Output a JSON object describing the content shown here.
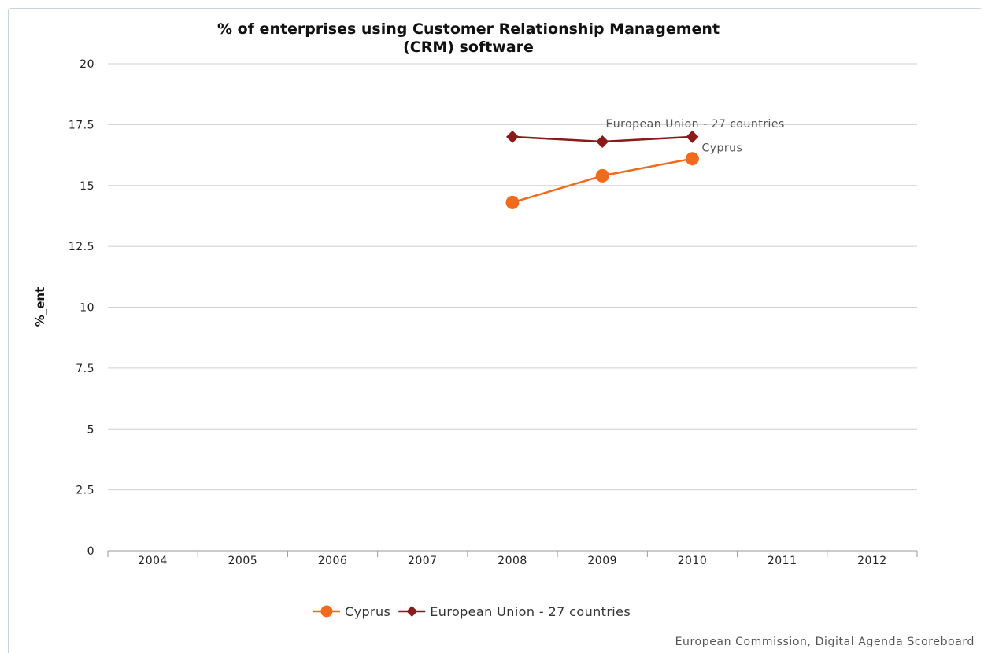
{
  "chart_data": {
    "type": "line",
    "title_lines": [
      "% of enterprises using Customer Relationship Management",
      "(CRM) software"
    ],
    "xlabel": "",
    "ylabel": "%_ent",
    "categories": [
      "2004",
      "2005",
      "2006",
      "2007",
      "2008",
      "2009",
      "2010",
      "2011",
      "2012"
    ],
    "ylim": [
      0,
      20
    ],
    "yticks": [
      "0",
      "2.5",
      "5",
      "7.5",
      "10",
      "12.5",
      "15",
      "17.5",
      "20"
    ],
    "grid": true,
    "legend_position": "bottom",
    "series": [
      {
        "name": "Cyprus",
        "color": "#f26a1b",
        "marker": "circle",
        "values": [
          null,
          null,
          null,
          null,
          14.3,
          15.4,
          16.1,
          null,
          null
        ],
        "end_label": "Cyprus"
      },
      {
        "name": "European Union - 27 countries",
        "color": "#8b1a1a",
        "marker": "diamond",
        "values": [
          null,
          null,
          null,
          null,
          17.0,
          16.8,
          17.0,
          null,
          null
        ],
        "end_label": "European Union - 27 countries"
      }
    ]
  },
  "source_text": "European Commission, Digital Agenda Scoreboard"
}
